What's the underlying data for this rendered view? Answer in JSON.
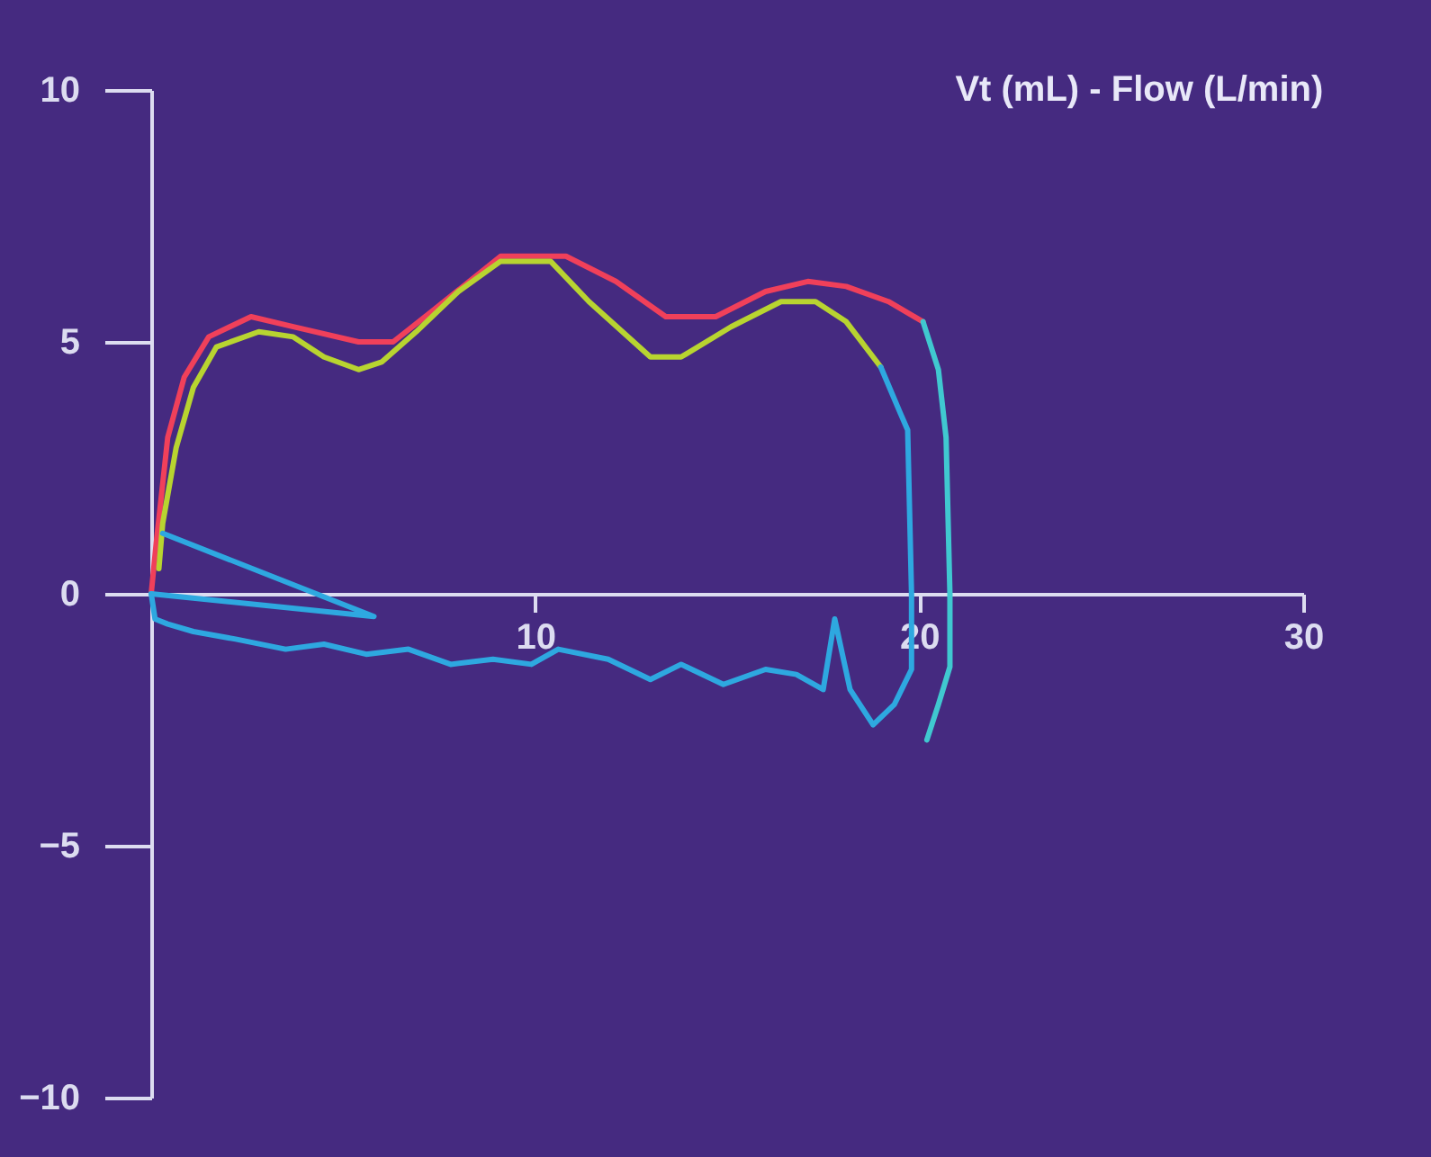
{
  "chart_data": {
    "type": "line",
    "title": "Vt (mL) - Flow (L/min)",
    "xlim": [
      0,
      30
    ],
    "xticks": [
      10,
      20,
      30
    ],
    "ylim": [
      -10,
      10
    ],
    "yticks": [
      10,
      5,
      0,
      -5,
      -10
    ],
    "grid": false,
    "legend": false,
    "marker": "none",
    "line_style": "solid",
    "series": [
      {
        "color": "#f0405a",
        "x": [
          0,
          0.13,
          0.43,
          0.86,
          1.5,
          2.6,
          3.7,
          5.4,
          6.3,
          7.3,
          9.1,
          10.8,
          12.1,
          13.4,
          14.7,
          16.0,
          17.1,
          18.1,
          19.2,
          20.1
        ],
        "values": [
          0,
          1.0,
          3.1,
          4.3,
          5.1,
          5.5,
          5.3,
          5.0,
          5.0,
          5.6,
          6.7,
          6.7,
          6.2,
          5.5,
          5.5,
          6.0,
          6.2,
          6.1,
          5.8,
          5.4
        ]
      },
      {
        "color": "#b8d430",
        "x": [
          0.2,
          0.3,
          0.65,
          1.1,
          1.7,
          2.8,
          3.7,
          4.5,
          5.4,
          6.0,
          6.9,
          8.0,
          9.1,
          10.4,
          11.4,
          13.0,
          13.8,
          15.1,
          16.4,
          17.3,
          18.1,
          19.0
        ],
        "values": [
          0.5,
          1.4,
          2.9,
          4.1,
          4.9,
          5.2,
          5.1,
          4.7,
          4.45,
          4.6,
          5.2,
          6.0,
          6.6,
          6.6,
          5.8,
          4.7,
          4.7,
          5.3,
          5.8,
          5.8,
          5.4,
          4.5
        ]
      },
      {
        "color": "#2ea8e0",
        "x": [
          19.0,
          19.5,
          19.7,
          19.8,
          19.8,
          19.35,
          18.8,
          18.2,
          17.8,
          17.5,
          16.8,
          16.0,
          14.9,
          13.8,
          13.0,
          11.9,
          10.6,
          9.9,
          8.9,
          7.8,
          6.7,
          5.6,
          4.5,
          3.5,
          2.2,
          1.1,
          0.43,
          0.1,
          0
        ],
        "values": [
          4.5,
          3.6,
          3.25,
          0,
          -1.5,
          -2.2,
          -2.6,
          -1.9,
          -0.5,
          -1.9,
          -1.6,
          -1.5,
          -1.8,
          -1.4,
          -1.7,
          -1.3,
          -1.1,
          -1.4,
          -1.3,
          -1.4,
          -1.1,
          -1.2,
          -1.0,
          -1.1,
          -0.9,
          -0.75,
          -0.6,
          -0.5,
          0
        ]
      },
      {
        "color": "#2ea8e0",
        "x": [
          0.3,
          5.8,
          0
        ],
        "values": [
          1.2,
          -0.45,
          0
        ]
      },
      {
        "color": "#40c8d0",
        "x": [
          20.1,
          20.5,
          20.7,
          20.8,
          20.8,
          20.5,
          20.2
        ],
        "values": [
          5.4,
          4.45,
          3.1,
          0,
          -1.45,
          -2.2,
          -2.9
        ]
      }
    ]
  }
}
